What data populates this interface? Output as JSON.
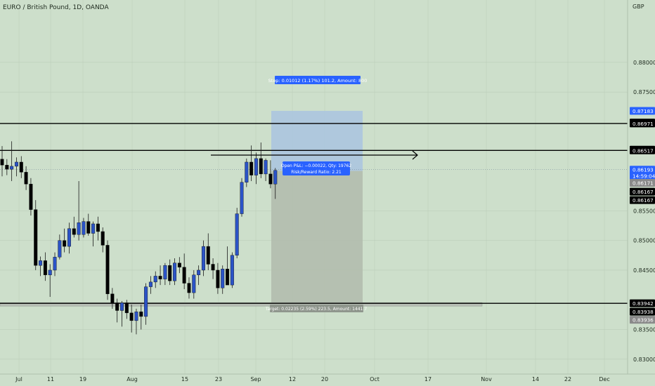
{
  "header": {
    "symbol_title": "EURO / British Pound, 1D, OANDA",
    "currency": "GBP"
  },
  "chart_data": {
    "type": "candlestick",
    "y_range": [
      0.8275,
      0.8905
    ],
    "y_ticks": [
      "0.88000",
      "0.87500",
      "0.85500",
      "0.85000",
      "0.84500",
      "0.83500",
      "0.83000"
    ],
    "x_ticks": [
      "Jul",
      "11",
      "19",
      "Aug",
      "15",
      "23",
      "Sep",
      "12",
      "20",
      "Oct",
      "17",
      "Nov",
      "14",
      "22",
      "Dec"
    ],
    "candles": [
      {
        "o": 0.8637,
        "h": 0.8659,
        "l": 0.8608,
        "c": 0.8627
      },
      {
        "o": 0.8627,
        "h": 0.8637,
        "l": 0.861,
        "c": 0.862
      },
      {
        "o": 0.862,
        "h": 0.8667,
        "l": 0.86,
        "c": 0.8625
      },
      {
        "o": 0.8625,
        "h": 0.864,
        "l": 0.8608,
        "c": 0.8632
      },
      {
        "o": 0.8632,
        "h": 0.8642,
        "l": 0.8605,
        "c": 0.8615
      },
      {
        "o": 0.8615,
        "h": 0.8625,
        "l": 0.8585,
        "c": 0.8595
      },
      {
        "o": 0.8595,
        "h": 0.8605,
        "l": 0.8542,
        "c": 0.8552
      },
      {
        "o": 0.8552,
        "h": 0.8568,
        "l": 0.845,
        "c": 0.8458
      },
      {
        "o": 0.8458,
        "h": 0.8473,
        "l": 0.844,
        "c": 0.8466
      },
      {
        "o": 0.8466,
        "h": 0.848,
        "l": 0.8432,
        "c": 0.8442
      },
      {
        "o": 0.8442,
        "h": 0.846,
        "l": 0.8405,
        "c": 0.845
      },
      {
        "o": 0.845,
        "h": 0.848,
        "l": 0.844,
        "c": 0.8472
      },
      {
        "o": 0.8472,
        "h": 0.851,
        "l": 0.8468,
        "c": 0.85
      },
      {
        "o": 0.85,
        "h": 0.852,
        "l": 0.848,
        "c": 0.849
      },
      {
        "o": 0.849,
        "h": 0.853,
        "l": 0.8478,
        "c": 0.852
      },
      {
        "o": 0.852,
        "h": 0.854,
        "l": 0.8505,
        "c": 0.851
      },
      {
        "o": 0.851,
        "h": 0.86,
        "l": 0.85,
        "c": 0.853
      },
      {
        "o": 0.851,
        "h": 0.8538,
        "l": 0.8505,
        "c": 0.8532
      },
      {
        "o": 0.8532,
        "h": 0.8545,
        "l": 0.8508,
        "c": 0.8512
      },
      {
        "o": 0.8512,
        "h": 0.8532,
        "l": 0.849,
        "c": 0.8528
      },
      {
        "o": 0.8528,
        "h": 0.854,
        "l": 0.85,
        "c": 0.8515
      },
      {
        "o": 0.8515,
        "h": 0.8522,
        "l": 0.848,
        "c": 0.8492
      },
      {
        "o": 0.8492,
        "h": 0.85,
        "l": 0.84,
        "c": 0.841
      },
      {
        "o": 0.841,
        "h": 0.842,
        "l": 0.8385,
        "c": 0.8395
      },
      {
        "o": 0.8395,
        "h": 0.8402,
        "l": 0.8362,
        "c": 0.8382
      },
      {
        "o": 0.8382,
        "h": 0.8398,
        "l": 0.8355,
        "c": 0.8395
      },
      {
        "o": 0.8395,
        "h": 0.84,
        "l": 0.8368,
        "c": 0.8378
      },
      {
        "o": 0.8378,
        "h": 0.8392,
        "l": 0.8345,
        "c": 0.8365
      },
      {
        "o": 0.8365,
        "h": 0.8385,
        "l": 0.8342,
        "c": 0.838
      },
      {
        "o": 0.838,
        "h": 0.8392,
        "l": 0.835,
        "c": 0.8372
      },
      {
        "o": 0.8372,
        "h": 0.8428,
        "l": 0.8358,
        "c": 0.8422
      },
      {
        "o": 0.8422,
        "h": 0.844,
        "l": 0.841,
        "c": 0.843
      },
      {
        "o": 0.843,
        "h": 0.8448,
        "l": 0.842,
        "c": 0.844
      },
      {
        "o": 0.844,
        "h": 0.8458,
        "l": 0.8425,
        "c": 0.8435
      },
      {
        "o": 0.8435,
        "h": 0.8462,
        "l": 0.8425,
        "c": 0.8458
      },
      {
        "o": 0.8458,
        "h": 0.8468,
        "l": 0.8425,
        "c": 0.8432
      },
      {
        "o": 0.8432,
        "h": 0.847,
        "l": 0.8425,
        "c": 0.8462
      },
      {
        "o": 0.8462,
        "h": 0.8472,
        "l": 0.8445,
        "c": 0.8455
      },
      {
        "o": 0.8455,
        "h": 0.8478,
        "l": 0.8418,
        "c": 0.8428
      },
      {
        "o": 0.8428,
        "h": 0.8438,
        "l": 0.8402,
        "c": 0.8412
      },
      {
        "o": 0.8412,
        "h": 0.845,
        "l": 0.8402,
        "c": 0.8442
      },
      {
        "o": 0.8442,
        "h": 0.8458,
        "l": 0.8425,
        "c": 0.845
      },
      {
        "o": 0.845,
        "h": 0.85,
        "l": 0.844,
        "c": 0.849
      },
      {
        "o": 0.849,
        "h": 0.8512,
        "l": 0.845,
        "c": 0.846
      },
      {
        "o": 0.846,
        "h": 0.847,
        "l": 0.8435,
        "c": 0.845
      },
      {
        "o": 0.845,
        "h": 0.8462,
        "l": 0.841,
        "c": 0.842
      },
      {
        "o": 0.842,
        "h": 0.8458,
        "l": 0.841,
        "c": 0.8452
      },
      {
        "o": 0.8452,
        "h": 0.849,
        "l": 0.843,
        "c": 0.8425
      },
      {
        "o": 0.8425,
        "h": 0.848,
        "l": 0.842,
        "c": 0.8475
      },
      {
        "o": 0.8475,
        "h": 0.8555,
        "l": 0.847,
        "c": 0.8545
      },
      {
        "o": 0.8545,
        "h": 0.8605,
        "l": 0.854,
        "c": 0.8598
      },
      {
        "o": 0.8598,
        "h": 0.8638,
        "l": 0.859,
        "c": 0.8632
      },
      {
        "o": 0.8632,
        "h": 0.866,
        "l": 0.86,
        "c": 0.861
      },
      {
        "o": 0.861,
        "h": 0.8648,
        "l": 0.8595,
        "c": 0.8638
      },
      {
        "o": 0.8638,
        "h": 0.8665,
        "l": 0.8605,
        "c": 0.8612
      },
      {
        "o": 0.8612,
        "h": 0.8638,
        "l": 0.86,
        "c": 0.8635
      },
      {
        "o": 0.8612,
        "h": 0.8635,
        "l": 0.8588,
        "c": 0.8595
      },
      {
        "o": 0.8595,
        "h": 0.8622,
        "l": 0.857,
        "c": 0.8618
      }
    ],
    "levels": [
      {
        "name": "resistance-upper",
        "price": 0.86971,
        "color": "#000000"
      },
      {
        "name": "resistance-lower",
        "price": 0.86517,
        "color": "#000000"
      },
      {
        "name": "support",
        "price": 0.83942,
        "color": "#000000"
      }
    ],
    "position": {
      "stop_label": "Stop: 0.01012 (1.17%) 101.2, Amount: 800",
      "pnl_line1": "Open P&L: −0.00022, Qty: 19762",
      "pnl_line2": "Risk/Reward Ratio: 2.21",
      "target_label": "Target: 0.02235 (2.59%) 223.5, Amount: 1441.7",
      "stop_price": 0.87183,
      "entry_price": 0.86171,
      "target_price": 0.83936
    },
    "price_tags": [
      {
        "text": "0.87183",
        "price": 0.87183,
        "bg": "#2962ff",
        "fg": "#ffffff"
      },
      {
        "text": "0.86986",
        "price": 0.86986,
        "bg": "#000000",
        "fg": "#ffffff"
      },
      {
        "text": "0.86971",
        "price": 0.86971,
        "bg": "#000000",
        "fg": "#ffffff"
      },
      {
        "text": "0.86529",
        "price": 0.86529,
        "bg": "#000000",
        "fg": "#ffffff"
      },
      {
        "text": "0.86517",
        "price": 0.86517,
        "bg": "#000000",
        "fg": "#ffffff"
      },
      {
        "text": "0.86193",
        "price": 0.86193,
        "bg": "#2962ff",
        "fg": "#ffffff"
      },
      {
        "text": "14:59:04",
        "price": 0.86087,
        "bg": "#2962ff",
        "fg": "#ffffff"
      },
      {
        "text": "0.86171",
        "price": 0.85971,
        "bg": "#8a8a8a",
        "fg": "#ffffff"
      },
      {
        "text": "0.86167",
        "price": 0.85821,
        "bg": "#000000",
        "fg": "#ffffff"
      },
      {
        "text": "0.86167",
        "price": 0.8568,
        "bg": "#000000",
        "fg": "#ffffff"
      },
      {
        "text": "0.83942",
        "price": 0.83942,
        "bg": "#000000",
        "fg": "#ffffff"
      },
      {
        "text": "0.83938",
        "price": 0.838,
        "bg": "#000000",
        "fg": "#ffffff"
      },
      {
        "text": "0.83936",
        "price": 0.83665,
        "bg": "#8a8a8a",
        "fg": "#ffffff"
      }
    ],
    "colors": {
      "up": "#2b53c7",
      "down": "#000000",
      "wick": "#1a1a1a",
      "background": "#cddfcb",
      "grid": "#b7c9b5"
    }
  }
}
